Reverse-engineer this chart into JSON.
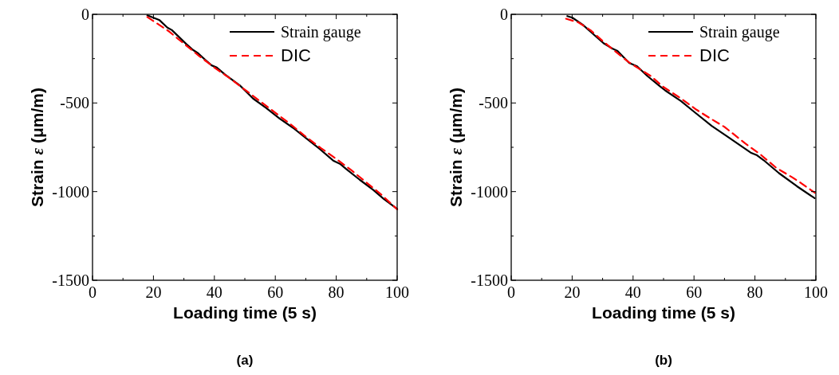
{
  "chart_data": [
    {
      "type": "line",
      "title": "(a)",
      "xlabel": "Loading time (5 s)",
      "ylabel": "Strain ε (μm/m)",
      "xlim": [
        0,
        100
      ],
      "ylim": [
        -1500,
        0
      ],
      "xticks": [
        0,
        20,
        40,
        60,
        80,
        100
      ],
      "yticks": [
        0,
        -500,
        -1000,
        -1500
      ],
      "legend": "top right",
      "series": [
        {
          "name": "Strain gauge",
          "color": "#000000",
          "line_style": "solid",
          "x": [
            18,
            22,
            24.6,
            26,
            28.1,
            30.8,
            33,
            34.7,
            36.9,
            39.1,
            40.8,
            43.5,
            48.3,
            52.7,
            57,
            61.4,
            65.8,
            70.2,
            74.6,
            79,
            81.2,
            83.3,
            87.7,
            92.1,
            95.6,
            100
          ],
          "values": [
            -6,
            -33,
            -75,
            -88,
            -123,
            -168,
            -201,
            -220,
            -255,
            -288,
            -300,
            -340,
            -400,
            -475,
            -528,
            -588,
            -640,
            -700,
            -760,
            -825,
            -843,
            -873,
            -933,
            -990,
            -1041,
            -1098
          ]
        },
        {
          "name": "DIC",
          "color": "#ff0000",
          "line_style": "dashed",
          "x": [
            18,
            25,
            30,
            35,
            40,
            45,
            50,
            55,
            60,
            65,
            70,
            75,
            80,
            85,
            90,
            95,
            100
          ],
          "values": [
            -15,
            -95,
            -165,
            -235,
            -300,
            -360,
            -425,
            -490,
            -555,
            -620,
            -690,
            -755,
            -815,
            -880,
            -950,
            -1020,
            -1100
          ]
        }
      ]
    },
    {
      "type": "line",
      "title": "(b)",
      "xlabel": "Loading time (5 s)",
      "ylabel": "Strain ε (μm/m)",
      "xlim": [
        0,
        100
      ],
      "ylim": [
        -1500,
        0
      ],
      "xticks": [
        0,
        20,
        40,
        60,
        80,
        100
      ],
      "yticks": [
        0,
        -500,
        -1000,
        -1500
      ],
      "legend": "top right",
      "series": [
        {
          "name": "Strain gauge",
          "color": "#000000",
          "line_style": "solid",
          "x": [
            18.4,
            20.1,
            23.5,
            26.9,
            30.3,
            33.2,
            34.9,
            38.7,
            41.3,
            44.7,
            48.9,
            50.6,
            55.7,
            59.9,
            65.8,
            70.9,
            78.6,
            80.7,
            82.8,
            87.9,
            93.8,
            99.6
          ],
          "values": [
            -10,
            -19,
            -59,
            -111,
            -163,
            -193,
            -207,
            -274,
            -293,
            -348,
            -407,
            -430,
            -489,
            -548,
            -629,
            -689,
            -780,
            -795,
            -822,
            -896,
            -970,
            -1037
          ]
        },
        {
          "name": "DIC",
          "color": "#ff0000",
          "line_style": "dashed",
          "x": [
            18,
            22,
            26,
            30,
            34,
            38.7,
            41.7,
            46,
            49.7,
            55.7,
            60.8,
            65.8,
            70,
            76.9,
            81.9,
            87,
            92.1,
            95,
            99.7
          ],
          "values": [
            -25,
            -45,
            -89,
            -150,
            -207,
            -271,
            -304,
            -350,
            -407,
            -474,
            -538,
            -592,
            -635,
            -729,
            -792,
            -866,
            -918,
            -950,
            -1007
          ]
        }
      ]
    }
  ]
}
